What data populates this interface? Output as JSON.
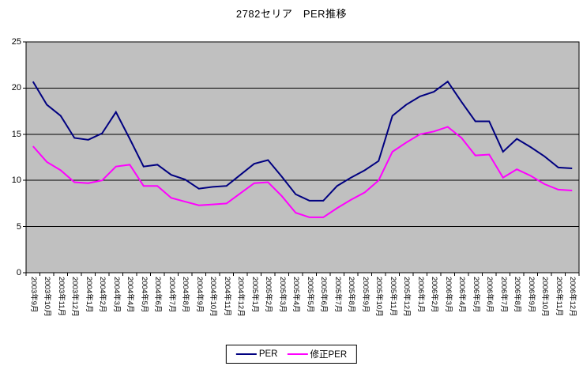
{
  "title": "2782セリア　PER推移",
  "legend": {
    "items": [
      {
        "label": "PER",
        "color": "#000080"
      },
      {
        "label": "修正PER",
        "color": "#FF00FF"
      }
    ]
  },
  "axes": {
    "y_tick_labels": [
      "0",
      "5",
      "10",
      "15",
      "20",
      "25"
    ]
  },
  "chart_data": {
    "type": "line",
    "title": "2782セリア　PER推移",
    "xlabel": "",
    "ylabel": "",
    "ylim": [
      0,
      25
    ],
    "yticks": [
      0,
      5,
      10,
      15,
      20,
      25
    ],
    "grid": true,
    "plot_bg": "#C0C0C0",
    "legend_position": "bottom",
    "categories": [
      "2003年9月",
      "2003年10月",
      "2003年11月",
      "2003年12月",
      "2004年1月",
      "2004年2月",
      "2004年3月",
      "2004年4月",
      "2004年5月",
      "2004年6月",
      "2004年7月",
      "2004年8月",
      "2004年9月",
      "2004年10月",
      "2004年11月",
      "2004年12月",
      "2005年1月",
      "2005年2月",
      "2005年3月",
      "2005年4月",
      "2005年5月",
      "2005年6月",
      "2005年7月",
      "2005年8月",
      "2005年9月",
      "2005年10月",
      "2005年11月",
      "2005年12月",
      "2006年1月",
      "2006年2月",
      "2006年3月",
      "2006年4月",
      "2006年5月",
      "2006年6月",
      "2006年7月",
      "2006年8月",
      "2006年9月",
      "2006年10月",
      "2006年11月",
      "2006年12月"
    ],
    "series": [
      {
        "name": "PER",
        "color": "#000080",
        "values": [
          20.7,
          18.2,
          17.0,
          14.6,
          14.4,
          15.1,
          17.4,
          14.5,
          11.5,
          11.7,
          10.6,
          10.1,
          9.1,
          9.3,
          9.4,
          10.6,
          11.8,
          12.2,
          10.4,
          8.5,
          7.8,
          7.8,
          9.4,
          10.3,
          11.1,
          12.1,
          17.0,
          18.2,
          19.1,
          19.6,
          20.7,
          18.5,
          16.4,
          16.4,
          13.1,
          14.5,
          13.6,
          12.6,
          11.4,
          11.3
        ]
      },
      {
        "name": "修正PER",
        "color": "#FF00FF",
        "values": [
          13.7,
          12.0,
          11.1,
          9.8,
          9.7,
          10.0,
          11.5,
          11.7,
          9.4,
          9.4,
          8.1,
          7.7,
          7.3,
          7.4,
          7.5,
          8.6,
          9.7,
          9.8,
          8.3,
          6.5,
          6.0,
          6.0,
          7.0,
          7.9,
          8.7,
          10.0,
          13.1,
          14.1,
          15.0,
          15.3,
          15.8,
          14.6,
          12.7,
          12.8,
          10.3,
          11.2,
          10.5,
          9.6,
          9.0,
          8.9
        ]
      }
    ]
  }
}
